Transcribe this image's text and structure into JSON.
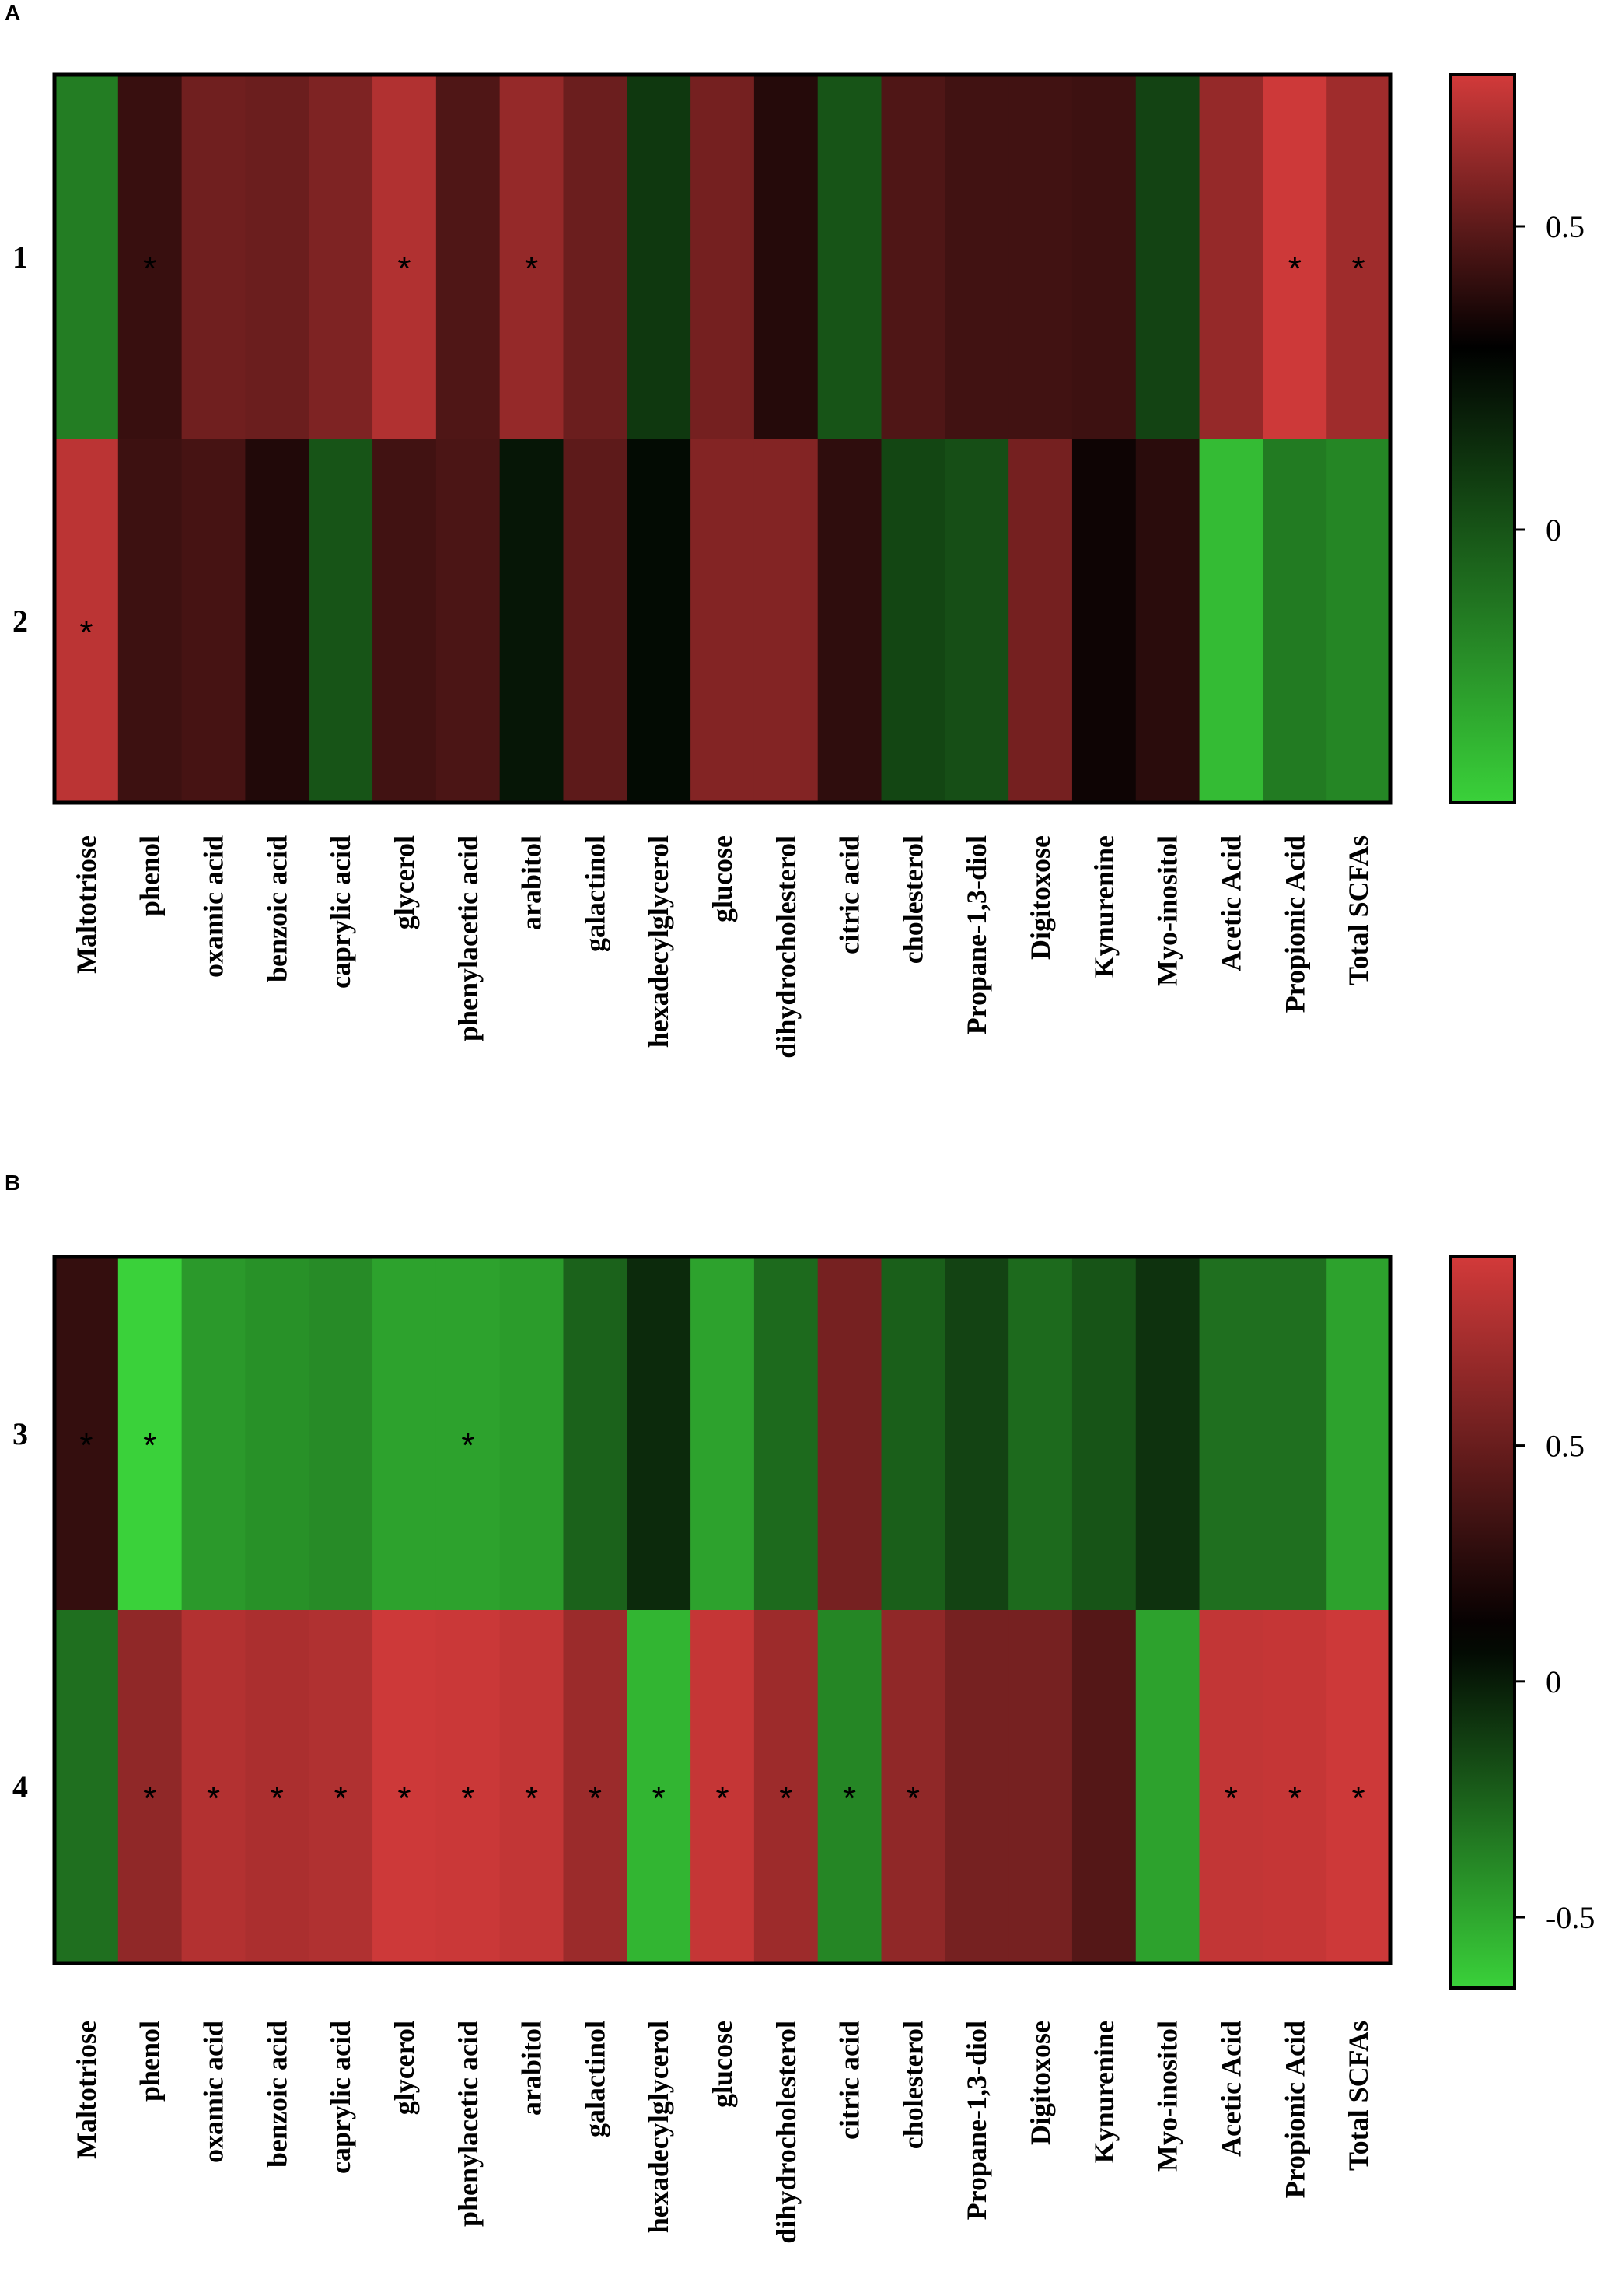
{
  "figure_colors": {
    "low": "#3ad13a",
    "mid": "#000000",
    "high": "#d23a3a"
  },
  "chart_data": [
    {
      "type": "heatmap",
      "panel": "A",
      "rows": [
        "1",
        "2"
      ],
      "columns": [
        "Maltotriose",
        "phenol",
        "oxamic acid",
        "benzoic acid",
        "caprylic acid",
        "glycerol",
        "phenylacetic acid",
        "arabitol",
        "galactinol",
        "hexadecylglycerol",
        "glucose",
        "dihydrocholesterol",
        "citric acid",
        "cholesterol",
        "Propane-1,3-diol",
        "Digitoxose",
        "Kynurenine",
        "Myo-inositol",
        "Acetic Acid",
        "Propionic Acid",
        "Total SCFAs"
      ],
      "values": [
        [
          -0.15,
          0.42,
          0.54,
          0.53,
          0.57,
          0.68,
          0.47,
          0.62,
          0.53,
          0.1,
          0.55,
          0.38,
          0.0,
          0.47,
          0.44,
          0.44,
          0.43,
          0.06,
          0.62,
          0.74,
          0.64
        ],
        [
          0.7,
          0.43,
          0.45,
          0.37,
          0.0,
          0.44,
          0.46,
          0.22,
          0.5,
          0.26,
          0.58,
          0.58,
          0.4,
          0.05,
          0.02,
          0.55,
          0.33,
          0.39,
          -0.37,
          -0.14,
          -0.18
        ]
      ],
      "significant": [
        [
          "",
          "*",
          "",
          "",
          "",
          "*",
          "",
          "*",
          "",
          "",
          "",
          "",
          "",
          "",
          "",
          "",
          "",
          "",
          "",
          "*",
          "*"
        ],
        [
          "*",
          "",
          "",
          "",
          "",
          "",
          "",
          "",
          "",
          "",
          "",
          "",
          "",
          "",
          "",
          "",
          "",
          "",
          "",
          "",
          ""
        ]
      ],
      "colorbar": {
        "min": -0.45,
        "max": 0.75,
        "mid": 0.3,
        "ticks": [
          0.5,
          0
        ],
        "tick_labels": [
          "0.5",
          "0"
        ]
      }
    },
    {
      "type": "heatmap",
      "panel": "B",
      "rows": [
        "3",
        "4"
      ],
      "columns": [
        "Maltotriose",
        "phenol",
        "oxamic acid",
        "benzoic acid",
        "caprylic acid",
        "glycerol",
        "phenylacetic acid",
        "arabitol",
        "galactinol",
        "hexadecylglycerol",
        "glucose",
        "dihydrocholesterol",
        "citric acid",
        "cholesterol",
        "Propane-1,3-diol",
        "Digitoxose",
        "Kynurenine",
        "Myo-inositol",
        "Acetic Acid",
        "Propionic Acid",
        "Total SCFAs"
      ],
      "values": [
        [
          0.3,
          -0.65,
          -0.45,
          -0.42,
          -0.4,
          -0.48,
          -0.48,
          -0.46,
          -0.25,
          -0.05,
          -0.48,
          -0.28,
          0.55,
          -0.24,
          -0.14,
          -0.28,
          -0.2,
          -0.08,
          -0.3,
          -0.3,
          -0.48
        ],
        [
          -0.3,
          0.65,
          0.78,
          0.75,
          0.77,
          0.88,
          0.87,
          0.84,
          0.69,
          -0.55,
          0.85,
          0.7,
          -0.38,
          0.65,
          0.55,
          0.55,
          0.42,
          -0.48,
          0.84,
          0.85,
          0.88
        ]
      ],
      "significant": [
        [
          "*",
          "*",
          "",
          "",
          "",
          "",
          "*",
          "",
          "",
          "",
          "",
          "",
          "",
          "",
          "",
          "",
          "",
          "",
          "",
          "",
          ""
        ],
        [
          "",
          "*",
          "*",
          "*",
          "*",
          "*",
          "*",
          "*",
          "*",
          "*",
          "*",
          "*",
          "*",
          "*",
          "",
          "",
          "",
          "",
          "*",
          "*",
          "*"
        ]
      ],
      "colorbar": {
        "min": -0.65,
        "max": 0.9,
        "mid": 0.1,
        "ticks": [
          0.5,
          0,
          -0.5
        ],
        "tick_labels": [
          "0.5",
          "0",
          "-0.5"
        ]
      }
    }
  ]
}
